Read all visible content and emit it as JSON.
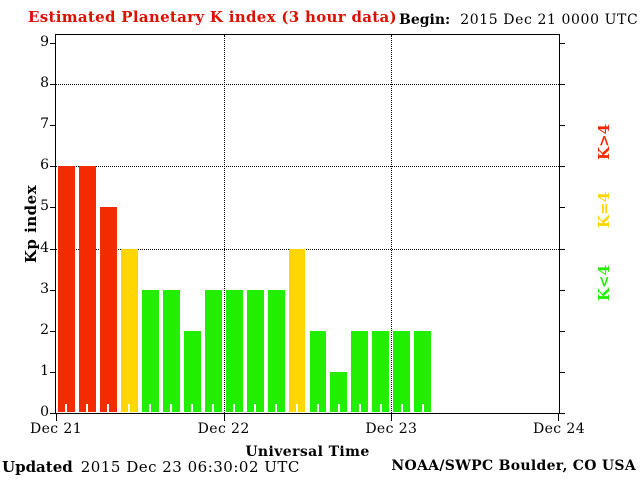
{
  "header": {
    "title": "Estimated Planetary K index (3 hour data)",
    "begin_label": "Begin:",
    "begin_value": "2015 Dec 21 0000 UTC"
  },
  "footer": {
    "updated_label": "Updated",
    "updated_value": "2015 Dec 23 06:30:02 UTC",
    "credit": "NOAA/SWPC Boulder, CO USA"
  },
  "colors": {
    "title_red": "#dd0f00",
    "bar_high_red": "#f32b00",
    "bar_moderate_yellow": "#ffd600",
    "bar_low_green": "#22ee00",
    "axis_black": "#000000"
  },
  "chart_data": {
    "type": "bar",
    "title": "Estimated Planetary K index (3 hour data)",
    "xlabel": "Universal Time",
    "ylabel": "Kp index",
    "ylim": [
      0,
      9
    ],
    "yticks": [
      0,
      1,
      2,
      3,
      4,
      5,
      6,
      7,
      8,
      9
    ],
    "gridlines_y": [
      4,
      6,
      8
    ],
    "grid": "dotted horizontal at 4,6,8 and dotted vertical at day boundaries",
    "x_day_labels": [
      "Dec 21",
      "Dec 22",
      "Dec 23",
      "Dec 24"
    ],
    "bars_per_day": 8,
    "hours_per_bar": 3,
    "values": [
      6,
      6,
      5,
      4,
      3,
      3,
      2,
      3,
      3,
      3,
      3,
      4,
      2,
      1,
      2,
      2,
      2,
      2
    ],
    "color_rule": "K>=5 red, K=4 yellow, K<4 green",
    "legend_position": "right, rotated 90deg",
    "legend": [
      {
        "label": "K>4",
        "color": "#f32b00"
      },
      {
        "label": "K=4",
        "color": "#ffd600"
      },
      {
        "label": "K<4",
        "color": "#22ee00"
      }
    ]
  }
}
